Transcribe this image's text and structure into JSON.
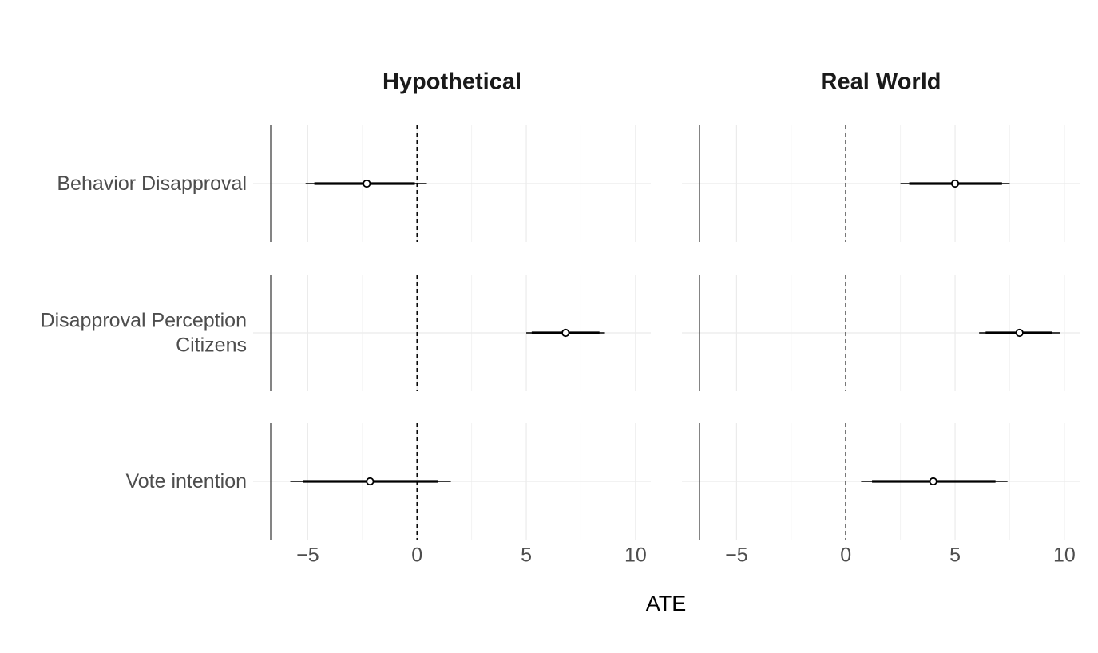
{
  "chart_data": {
    "type": "scatter",
    "subtype": "coefficient-plot",
    "xlabel": "ATE",
    "xlim": [
      -7.5,
      10.7
    ],
    "x_ticks": [
      -5,
      0,
      5,
      10
    ],
    "x_tick_labels": [
      "−5",
      "0",
      "5",
      "10"
    ],
    "x_minor_ticks": [
      -2.5,
      2.5,
      7.5
    ],
    "zero_line": 0,
    "grid": true,
    "rows": [
      {
        "label": "Behavior Disapproval"
      },
      {
        "label": "Disapproval Perception \nCitizens"
      },
      {
        "label": "Vote intention"
      }
    ],
    "facets": [
      {
        "title": "Hypothetical",
        "estimates": [
          {
            "row": "Behavior Disapproval",
            "estimate": -2.3,
            "ci_inner": [
              -4.7,
              -0.1
            ],
            "ci_outer": [
              -5.1,
              0.45
            ]
          },
          {
            "row": "Disapproval Perception Citizens",
            "estimate": 6.8,
            "ci_inner": [
              5.25,
              8.35
            ],
            "ci_outer": [
              5.0,
              8.6
            ]
          },
          {
            "row": "Vote intention",
            "estimate": -2.15,
            "ci_inner": [
              -5.2,
              0.95
            ],
            "ci_outer": [
              -5.8,
              1.55
            ]
          }
        ]
      },
      {
        "title": "Real World",
        "estimates": [
          {
            "row": "Behavior Disapproval",
            "estimate": 5.0,
            "ci_inner": [
              2.9,
              7.15
            ],
            "ci_outer": [
              2.5,
              7.5
            ]
          },
          {
            "row": "Disapproval Perception Citizens",
            "estimate": 7.95,
            "ci_inner": [
              6.4,
              9.45
            ],
            "ci_outer": [
              6.1,
              9.8
            ]
          },
          {
            "row": "Vote intention",
            "estimate": 4.0,
            "ci_inner": [
              1.2,
              6.85
            ],
            "ci_outer": [
              0.7,
              7.4
            ]
          }
        ]
      }
    ]
  }
}
